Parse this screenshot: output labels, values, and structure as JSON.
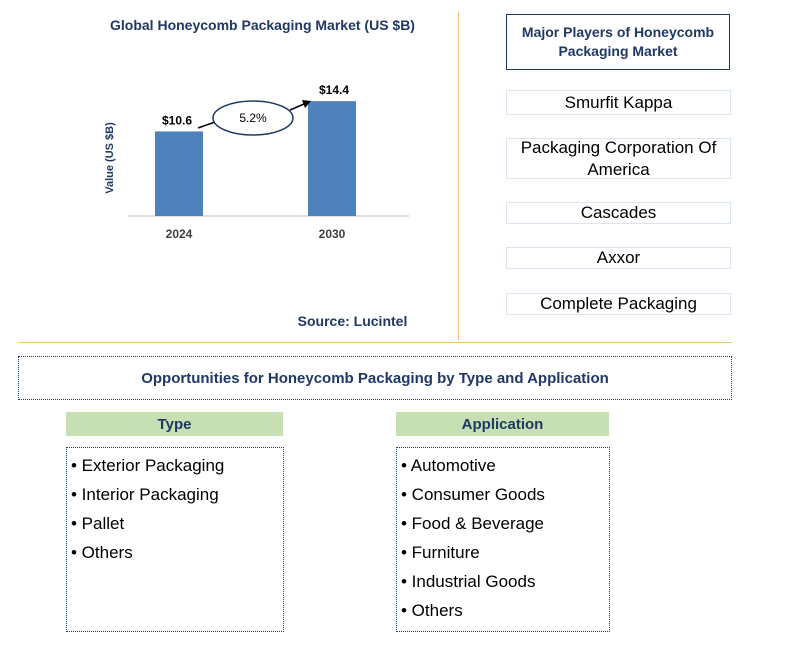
{
  "chart_data": {
    "type": "bar",
    "title": "Global Honeycomb Packaging Market (US $B)",
    "ylabel": "Value (US $B)",
    "xlabel": "",
    "categories": [
      "2024",
      "2030"
    ],
    "values": [
      10.6,
      14.4
    ],
    "data_labels": [
      "$10.6",
      "$14.4"
    ],
    "ylim": [
      0,
      16
    ],
    "annotation": "5.2%",
    "grid": false,
    "source": "Source: Lucintel",
    "bar_color": "#4f81bd"
  },
  "players": {
    "title": "Major Players of Honeycomb Packaging Market",
    "items": [
      "Smurfit Kappa",
      "Packaging Corporation Of America",
      "Cascades",
      "Axxor",
      "Complete Packaging"
    ]
  },
  "opportunities": {
    "title": "Opportunities for Honeycomb Packaging by Type and Application",
    "type": {
      "heading": "Type",
      "items": [
        "• Exterior Packaging",
        "• Interior Packaging",
        "• Pallet",
        "• Others"
      ]
    },
    "application": {
      "heading": "Application",
      "items": [
        "• Automotive",
        "• Consumer Goods",
        "• Food & Beverage",
        "• Furniture",
        "• Industrial Goods",
        "• Others"
      ]
    }
  }
}
